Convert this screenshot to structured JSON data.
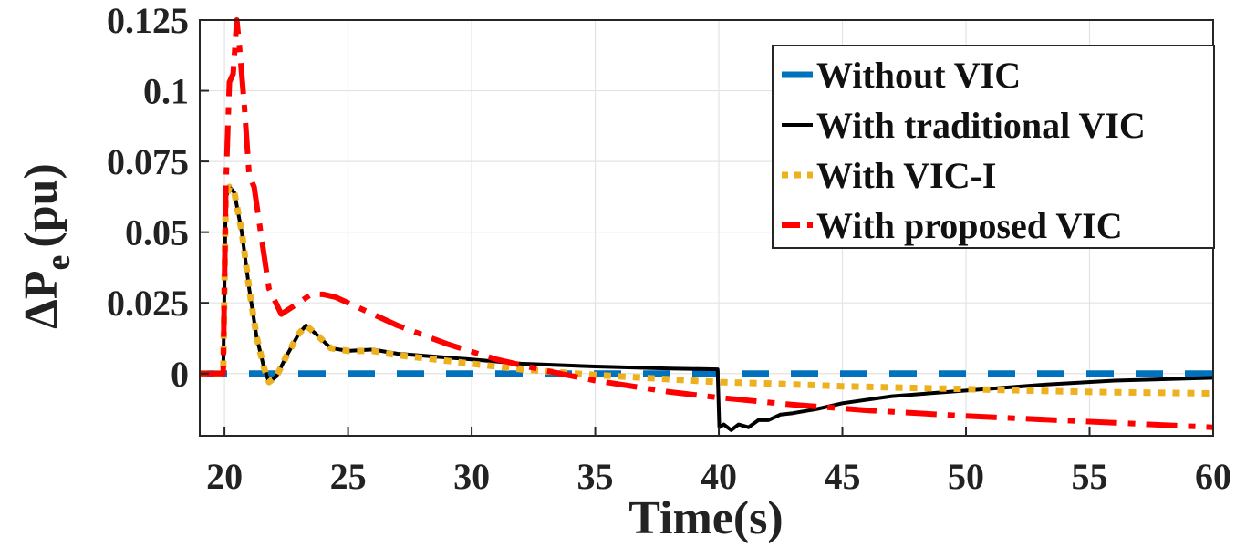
{
  "chart_data": {
    "type": "line",
    "title": "",
    "xlabel": "Time(s)",
    "ylabel_main": "ΔP",
    "ylabel_sub": "e",
    "ylabel_unit": "(pu)",
    "xlim": [
      19,
      60
    ],
    "ylim": [
      -0.022,
      0.125
    ],
    "xticks": [
      20,
      25,
      30,
      35,
      40,
      45,
      50,
      55,
      60
    ],
    "yticks": [
      0,
      0.025,
      0.05,
      0.075,
      0.1,
      0.125
    ],
    "xtick_labels": [
      "20",
      "25",
      "30",
      "35",
      "40",
      "45",
      "50",
      "55",
      "60"
    ],
    "ytick_labels": [
      "0",
      "0.025",
      "0.05",
      "0.075",
      "0.1",
      "0.125"
    ],
    "grid": true,
    "legend_position": "top-right",
    "series": [
      {
        "name": "Without VIC",
        "color": "#0072BD",
        "style": "dashed",
        "x": [
          19,
          60
        ],
        "y": [
          0,
          0
        ]
      },
      {
        "name": "With traditional VIC",
        "color": "#000000",
        "style": "solid",
        "x": [
          19,
          19.95,
          20.05,
          20.2,
          20.4,
          20.7,
          21.0,
          21.3,
          21.6,
          21.8,
          22.1,
          22.5,
          23.0,
          23.3,
          23.7,
          24.3,
          25.0,
          26.0,
          27.0,
          28.5,
          30.0,
          32.0,
          35.0,
          38.0,
          39.95,
          40.02,
          40.2,
          40.5,
          40.8,
          41.2,
          41.6,
          42.0,
          42.5,
          43.0,
          44.0,
          45.0,
          47.0,
          50.0,
          53.0,
          56.0,
          60.0
        ],
        "y": [
          0,
          0,
          0.062,
          0.066,
          0.064,
          0.05,
          0.03,
          0.013,
          0.002,
          -0.003,
          -0.001,
          0.006,
          0.014,
          0.017,
          0.014,
          0.009,
          0.008,
          0.0085,
          0.007,
          0.006,
          0.005,
          0.0035,
          0.0025,
          0.0018,
          0.0015,
          -0.019,
          -0.018,
          -0.02,
          -0.018,
          -0.019,
          -0.0165,
          -0.0165,
          -0.0145,
          -0.014,
          -0.0125,
          -0.0105,
          -0.008,
          -0.006,
          -0.004,
          -0.0025,
          -0.0015
        ]
      },
      {
        "name": "With VIC-I",
        "color": "#EDB120",
        "style": "dotted",
        "x": [
          19,
          19.95,
          20.05,
          20.2,
          20.4,
          20.7,
          21.0,
          21.3,
          21.6,
          21.8,
          22.1,
          22.5,
          23.0,
          23.3,
          23.7,
          24.3,
          25.0,
          26.0,
          27.0,
          28.5,
          30.0,
          32.0,
          35.0,
          38.0,
          40.0,
          42.0,
          45.0,
          50.0,
          55.0,
          60.0
        ],
        "y": [
          0,
          0,
          0.062,
          0.066,
          0.064,
          0.05,
          0.03,
          0.013,
          0.002,
          -0.003,
          -0.001,
          0.006,
          0.014,
          0.017,
          0.014,
          0.009,
          0.008,
          0.008,
          0.0065,
          0.005,
          0.0035,
          0.0015,
          -0.0005,
          -0.002,
          -0.003,
          -0.0035,
          -0.0045,
          -0.0055,
          -0.0065,
          -0.007
        ]
      },
      {
        "name": "With proposed VIC",
        "color": "#FF0000",
        "style": "dashdot",
        "x": [
          19,
          19.95,
          20.05,
          20.2,
          20.35,
          20.5,
          20.6,
          20.8,
          21.0,
          21.2,
          21.5,
          21.8,
          22.3,
          23.0,
          23.5,
          24.0,
          24.5,
          25.5,
          27.0,
          29.0,
          31.0,
          33.0,
          35.0,
          38.0,
          40.0,
          43.0,
          46.0,
          50.0,
          55.0,
          60.0
        ],
        "y": [
          0,
          0,
          0.065,
          0.103,
          0.106,
          0.125,
          0.116,
          0.095,
          0.07,
          0.066,
          0.048,
          0.03,
          0.021,
          0.025,
          0.028,
          0.028,
          0.027,
          0.023,
          0.017,
          0.0105,
          0.005,
          0.001,
          -0.0025,
          -0.0065,
          -0.0085,
          -0.011,
          -0.013,
          -0.015,
          -0.017,
          -0.019
        ]
      }
    ]
  }
}
